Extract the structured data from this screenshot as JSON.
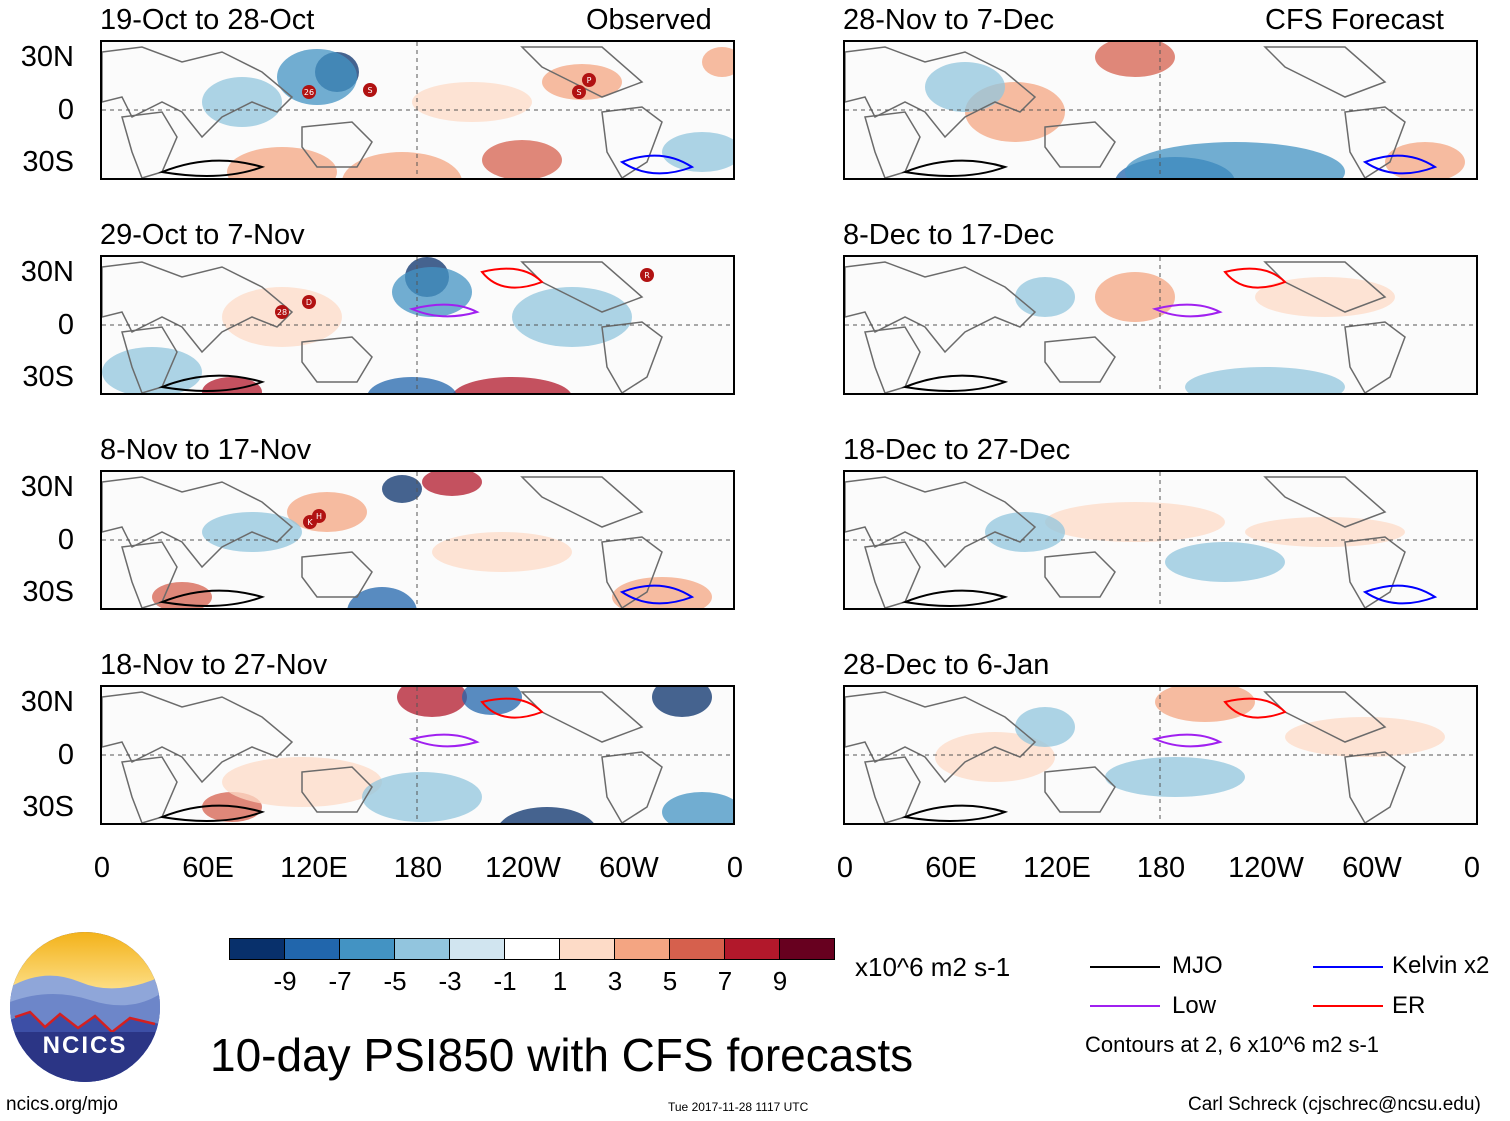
{
  "panels": [
    {
      "title": "19-Oct to 28-Oct",
      "label": "Observed"
    },
    {
      "title": "29-Oct to 7-Nov",
      "label": ""
    },
    {
      "title": "8-Nov to 17-Nov",
      "label": ""
    },
    {
      "title": "18-Nov to 27-Nov",
      "label": ""
    },
    {
      "title": "28-Nov to 7-Dec",
      "label": "CFS Forecast"
    },
    {
      "title": "8-Dec to 17-Dec",
      "label": ""
    },
    {
      "title": "18-Dec to 27-Dec",
      "label": ""
    },
    {
      "title": "28-Dec to 6-Jan",
      "label": ""
    }
  ],
  "lat_labels": [
    "30N",
    "0",
    "30S"
  ],
  "lon_labels": [
    "0",
    "60E",
    "120E",
    "180",
    "120W",
    "60W",
    "0"
  ],
  "colorbar": {
    "colors": [
      "#08306b",
      "#2166ac",
      "#4393c3",
      "#92c5de",
      "#d1e5f0",
      "#ffffff",
      "#fddbc7",
      "#f4a582",
      "#d6604d",
      "#b2182b",
      "#67001f"
    ],
    "labels": [
      "-9",
      "-7",
      "-5",
      "-3",
      "-1",
      "1",
      "3",
      "5",
      "7",
      "9"
    ],
    "units": "x10^6 m2 s-1"
  },
  "legend": {
    "items": [
      {
        "label": "MJO",
        "color": "#000000"
      },
      {
        "label": "Kelvin x2",
        "color": "#0000ff"
      },
      {
        "label": "Low",
        "color": "#a020f0"
      },
      {
        "label": "ER",
        "color": "#ff0000"
      }
    ],
    "note": "Contours at 2, 6 x10^6 m2 s-1"
  },
  "logo_text": "NCICS",
  "main_title": "10-day PSI850 with CFS forecasts",
  "footer": {
    "left": "ncics.org/mjo",
    "center": "Tue 2017-11-28 1117 UTC",
    "right": "Carl Schreck (cjschrec@ncsu.edu)"
  },
  "storm_markers": [
    {
      "panel": 0,
      "labels": [
        "26",
        "S",
        "S",
        "P"
      ]
    },
    {
      "panel": 1,
      "labels": [
        "28",
        "D",
        "R"
      ]
    },
    {
      "panel": 2,
      "labels": [
        "K",
        "H"
      ]
    }
  ]
}
